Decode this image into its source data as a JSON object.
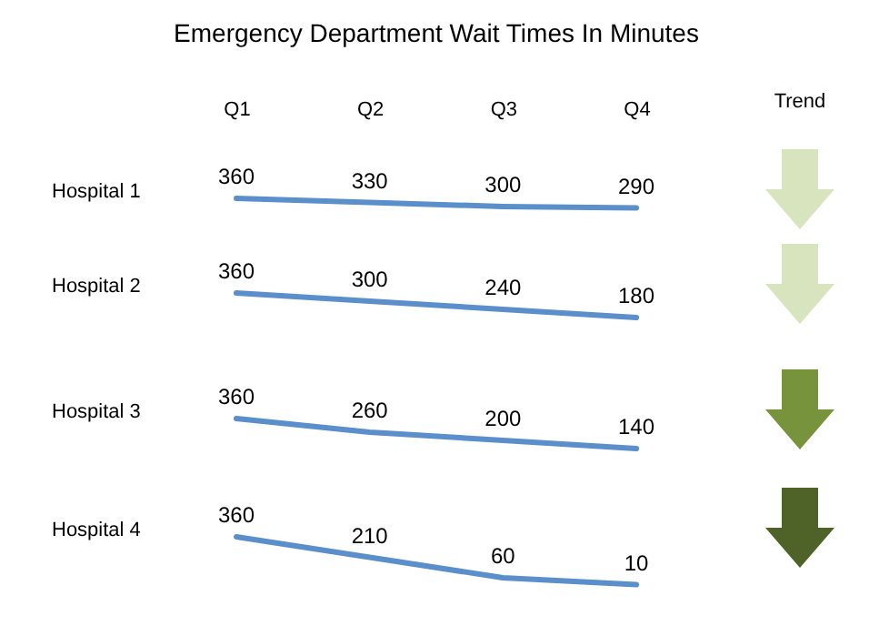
{
  "chart_data": [
    {
      "type": "line",
      "title": "Emergency Department Wait Times In Minutes",
      "ylabel": "Hospital 1",
      "categories": [
        "Q1",
        "Q2",
        "Q3",
        "Q4"
      ],
      "values": [
        360,
        330,
        300,
        290
      ],
      "data_labels": true,
      "tick_labels": "x",
      "color": "#5b8fcb",
      "annotations": [
        "Trend"
      ]
    },
    {
      "type": "line",
      "ylabel": "Hospital 2",
      "categories": [
        null,
        null,
        null,
        null
      ],
      "values": [
        360,
        300,
        240,
        180
      ],
      "data_labels": true,
      "tick_labels": false,
      "color": "#5b8fcb"
    },
    {
      "type": "line",
      "ylabel": "Hospital 3",
      "categories": [
        null,
        null,
        null,
        null
      ],
      "values": [
        360,
        260,
        200,
        140
      ],
      "data_labels": true,
      "tick_labels": false,
      "color": "#5b8fcb"
    },
    {
      "type": "line",
      "ylabel": "Hospital 4",
      "categories": [
        null,
        null,
        null,
        null
      ],
      "values": [
        360,
        210,
        60,
        10
      ],
      "data_labels": true,
      "tick_labels": false,
      "color": "#5b8fcb"
    }
  ]
}
